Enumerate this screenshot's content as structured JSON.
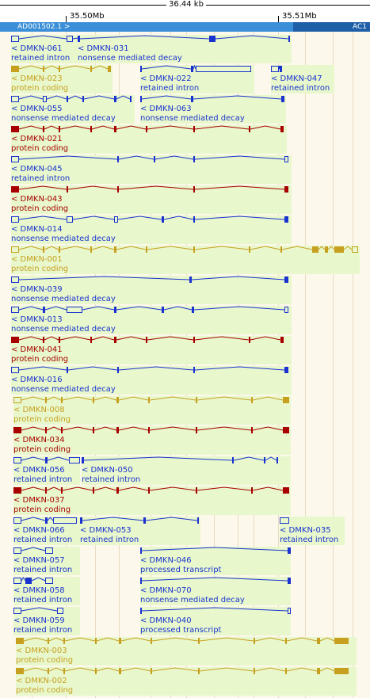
{
  "ruler": {
    "span_label": "36.44 kb",
    "ticks": [
      "35.50Mb",
      "35.51Mb"
    ]
  },
  "contig": {
    "left_label": "AD001502.1 >",
    "right_label": "AC1"
  },
  "colors": {
    "retained_intron": "#1a32d0",
    "nonsense_mediated_decay": "#1a32d0",
    "processed_transcript": "#1a32d0",
    "protein_coding_red": "#a80000",
    "protein_coding_gold": "#c8a020",
    "label_bg": "#e8f8cc"
  },
  "transcripts": [
    {
      "name": "< DMKN-061",
      "type": "retained intron"
    },
    {
      "name": "< DMKN-031",
      "type": "nonsense mediated decay"
    },
    {
      "name": "< DMKN-023",
      "type": "protein coding"
    },
    {
      "name": "< DMKN-022",
      "type": "retained intron"
    },
    {
      "name": "< DMKN-047",
      "type": "retained intron"
    },
    {
      "name": "< DMKN-055",
      "type": "nonsense mediated decay"
    },
    {
      "name": "< DMKN-063",
      "type": "nonsense mediated decay"
    },
    {
      "name": "< DMKN-021",
      "type": "protein coding"
    },
    {
      "name": "< DMKN-045",
      "type": "retained intron"
    },
    {
      "name": "< DMKN-043",
      "type": "protein coding"
    },
    {
      "name": "< DMKN-014",
      "type": "nonsense mediated decay"
    },
    {
      "name": "< DMKN-001",
      "type": "protein coding"
    },
    {
      "name": "< DMKN-039",
      "type": "nonsense mediated decay"
    },
    {
      "name": "< DMKN-013",
      "type": "nonsense mediated decay"
    },
    {
      "name": "< DMKN-041",
      "type": "protein coding"
    },
    {
      "name": "< DMKN-016",
      "type": "nonsense mediated decay"
    },
    {
      "name": "< DMKN-008",
      "type": "protein coding"
    },
    {
      "name": "< DMKN-034",
      "type": "protein coding"
    },
    {
      "name": "< DMKN-056",
      "type": "retained intron"
    },
    {
      "name": "< DMKN-050",
      "type": "retained intron"
    },
    {
      "name": "< DMKN-037",
      "type": "protein coding"
    },
    {
      "name": "< DMKN-066",
      "type": "retained intron"
    },
    {
      "name": "< DMKN-053",
      "type": "retained intron"
    },
    {
      "name": "< DMKN-035",
      "type": "retained intron"
    },
    {
      "name": "< DMKN-057",
      "type": "retained intron"
    },
    {
      "name": "< DMKN-046",
      "type": "processed transcript"
    },
    {
      "name": "< DMKN-058",
      "type": "retained intron"
    },
    {
      "name": "< DMKN-070",
      "type": "nonsense mediated decay"
    },
    {
      "name": "< DMKN-059",
      "type": "retained intron"
    },
    {
      "name": "< DMKN-040",
      "type": "processed transcript"
    },
    {
      "name": "< DMKN-003",
      "type": "protein coding"
    },
    {
      "name": "< DMKN-002",
      "type": "protein coding"
    }
  ]
}
